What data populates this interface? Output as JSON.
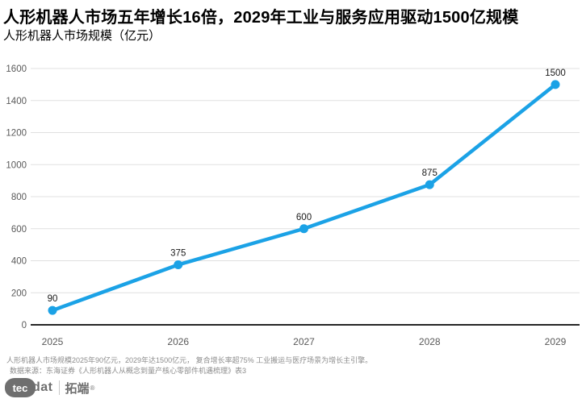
{
  "header": {
    "title": "人形机器人市场五年增长16倍，2029年工业与服务应用驱动1500亿规模",
    "subtitle": "人形机器人市场规模（亿元）"
  },
  "chart_data": {
    "type": "line",
    "title": "人形机器人市场规模（亿元）",
    "categories": [
      "2025",
      "2026",
      "2027",
      "2028",
      "2029"
    ],
    "values": [
      90,
      375,
      600,
      875,
      1500
    ],
    "data_labels": [
      "90",
      "375",
      "600",
      "875",
      "1500"
    ],
    "xlabel": "",
    "ylabel": "",
    "ylim": [
      0,
      1600
    ],
    "ytick_interval": 200,
    "ytick_labels": [
      "0",
      "200",
      "400",
      "600",
      "800",
      "1000",
      "1200",
      "1400",
      "1600"
    ],
    "grid": true,
    "legend": "none",
    "colors": {
      "line": "#1BA2E6",
      "marker": "#1BA2E6",
      "gridline": "#e0e0e0",
      "axis_line": "#262626",
      "tick_label": "#595959",
      "data_label": "#1a1a1a"
    }
  },
  "footer": {
    "note": "人形机器人市场规模2025年90亿元，2029年达1500亿元， 复合增长率超75%  工业搬运与医疗场景为增长主引擎。",
    "source": "数据来源：东海证券《人形机器人从概念到量产核心零部件机遇梳理》表3"
  },
  "logo": {
    "pill": "tec",
    "suffix": "dat",
    "brand": "拓端",
    "reg": "®"
  }
}
